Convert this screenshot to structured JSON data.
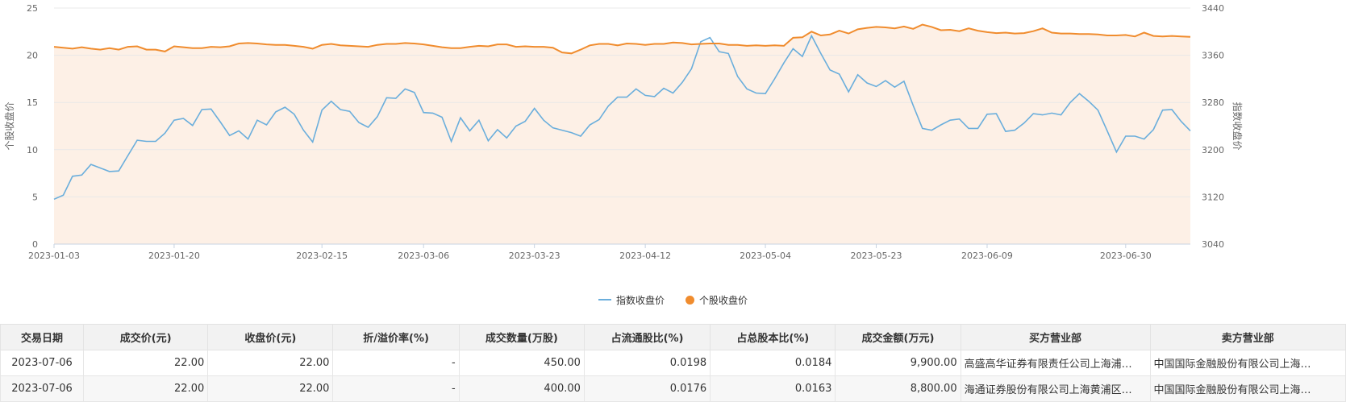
{
  "colors": {
    "index_line": "#6aaedc",
    "stock_line": "#f08c2e",
    "area_fill": "#fdf0e6",
    "grid": "#e8e8e8"
  },
  "chart_data": {
    "type": "line",
    "ylabel_left": "个股收盘价",
    "ylabel_right": "指数收盘价",
    "ylim_left": [
      0,
      25
    ],
    "ylim_right": [
      3040,
      3440
    ],
    "yticks_left": [
      "0",
      "5",
      "10",
      "15",
      "20",
      "25"
    ],
    "yticks_right": [
      "3040",
      "3120",
      "3200",
      "3280",
      "3360",
      "3440"
    ],
    "x_tick_labels": [
      "2023-01-03",
      "2023-01-20",
      "2023-02-15",
      "2023-03-06",
      "2023-03-23",
      "2023-04-12",
      "2023-05-04",
      "2023-05-23",
      "2023-06-09",
      "2023-06-30"
    ],
    "grid": true,
    "legend_position": "bottom",
    "series": [
      {
        "name": "指数收盘价",
        "axis": "right",
        "values": [
          3116,
          3123,
          3155,
          3157,
          3175,
          3169,
          3163,
          3164,
          3190,
          3216,
          3214,
          3214,
          3228,
          3250,
          3253,
          3241,
          3268,
          3269,
          3247,
          3224,
          3232,
          3218,
          3250,
          3242,
          3264,
          3272,
          3260,
          3233,
          3213,
          3267,
          3282,
          3268,
          3265,
          3246,
          3238,
          3256,
          3288,
          3287,
          3303,
          3297,
          3263,
          3262,
          3255,
          3214,
          3254,
          3232,
          3250,
          3215,
          3234,
          3220,
          3240,
          3248,
          3270,
          3250,
          3237,
          3233,
          3229,
          3223,
          3242,
          3251,
          3274,
          3289,
          3289,
          3303,
          3292,
          3290,
          3304,
          3296,
          3314,
          3337,
          3383,
          3390,
          3366,
          3363,
          3324,
          3303,
          3296,
          3295,
          3320,
          3347,
          3371,
          3358,
          3393,
          3363,
          3335,
          3328,
          3298,
          3327,
          3313,
          3307,
          3317,
          3306,
          3316,
          3275,
          3236,
          3233,
          3242,
          3250,
          3252,
          3236,
          3236,
          3260,
          3261,
          3231,
          3233,
          3245,
          3261,
          3259,
          3262,
          3259,
          3280,
          3295,
          3282,
          3267,
          3232,
          3196,
          3223,
          3223,
          3218,
          3234,
          3267,
          3268,
          3248,
          3232
        ]
      },
      {
        "name": "个股收盘价",
        "axis": "left",
        "values": [
          20.9,
          20.8,
          20.7,
          20.85,
          20.7,
          20.6,
          20.75,
          20.6,
          20.9,
          20.95,
          20.6,
          20.6,
          20.4,
          20.95,
          20.85,
          20.75,
          20.75,
          20.9,
          20.85,
          20.95,
          21.25,
          21.3,
          21.25,
          21.15,
          21.1,
          21.1,
          21.0,
          20.9,
          20.7,
          21.1,
          21.2,
          21.05,
          21.0,
          20.95,
          20.9,
          21.1,
          21.2,
          21.2,
          21.3,
          21.25,
          21.15,
          21.0,
          20.85,
          20.75,
          20.75,
          20.9,
          21.0,
          20.95,
          21.15,
          21.15,
          20.9,
          20.95,
          20.9,
          20.9,
          20.8,
          20.3,
          20.2,
          20.6,
          21.05,
          21.2,
          21.2,
          21.05,
          21.25,
          21.2,
          21.1,
          21.2,
          21.2,
          21.35,
          21.3,
          21.15,
          21.2,
          21.25,
          21.25,
          21.1,
          21.1,
          21.0,
          21.05,
          21.0,
          21.05,
          21.0,
          21.85,
          21.9,
          22.5,
          22.1,
          22.2,
          22.6,
          22.3,
          22.75,
          22.9,
          23.0,
          22.95,
          22.85,
          23.05,
          22.8,
          23.25,
          23.0,
          22.65,
          22.7,
          22.55,
          22.85,
          22.6,
          22.45,
          22.35,
          22.4,
          22.3,
          22.35,
          22.55,
          22.85,
          22.4,
          22.3,
          22.3,
          22.25,
          22.25,
          22.2,
          22.1,
          22.1,
          22.15,
          22.0,
          22.4,
          22.05,
          22.0,
          22.05,
          22.0,
          21.95
        ]
      }
    ]
  },
  "legend": {
    "index_label": "指数收盘价",
    "stock_label": "个股收盘价"
  },
  "table": {
    "headers": [
      "交易日期",
      "成交价(元)",
      "收盘价(元)",
      "折/溢价率(%)",
      "成交数量(万股)",
      "占流通股比(%)",
      "占总股本比(%)",
      "成交金额(万元)",
      "买方营业部",
      "卖方营业部"
    ],
    "rows": [
      [
        "2023-07-06",
        "22.00",
        "22.00",
        "-",
        "450.00",
        "0.0198",
        "0.0184",
        "9,900.00",
        "高盛高华证券有限责任公司上海浦…",
        "中国国际金融股份有限公司上海…"
      ],
      [
        "2023-07-06",
        "22.00",
        "22.00",
        "-",
        "400.00",
        "0.0176",
        "0.0163",
        "8,800.00",
        "海通证券股份有限公司上海黄浦区…",
        "中国国际金融股份有限公司上海…"
      ]
    ]
  }
}
